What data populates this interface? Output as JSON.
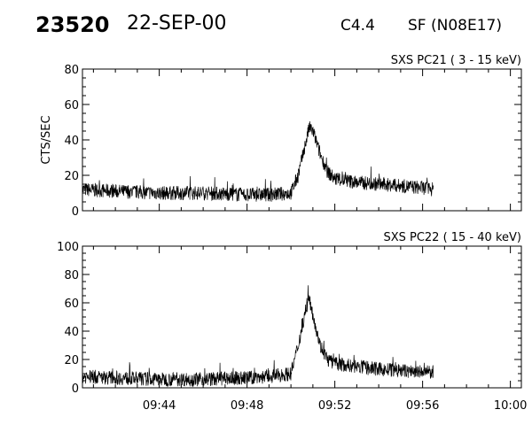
{
  "header": {
    "event_id": "23520",
    "date": "22-SEP-00",
    "flare_class": "C4.4",
    "location": "SF (N08E17)"
  },
  "chart_data": [
    {
      "type": "line",
      "title": "SXS PC21  (  3 - 15 keV)",
      "ylabel": "CTS/SEC",
      "xlabel": "",
      "ylim": [
        0,
        80
      ],
      "yticks": [
        "0",
        "20",
        "40",
        "60",
        "80"
      ],
      "xlim": [
        "09:40:30",
        "10:00:30"
      ],
      "x_tick_labels": [
        "09:44",
        "09:48",
        "09:52",
        "09:56",
        "10:00"
      ],
      "series": [
        {
          "x": [
            "09:40:30",
            "09:42:00",
            "09:44:00",
            "09:46:00",
            "09:48:00",
            "09:49:00",
            "09:50:00",
            "09:50:20",
            "09:50:40",
            "09:50:50",
            "09:51:00",
            "09:51:20",
            "09:51:40",
            "09:52:00",
            "09:52:30",
            "09:53:00",
            "09:54:00",
            "09:55:00",
            "09:56:00",
            "09:56:30"
          ],
          "y": [
            12,
            11,
            10,
            10,
            9,
            9,
            10,
            20,
            38,
            47,
            45,
            32,
            22,
            18,
            17,
            16,
            15,
            14,
            13,
            12
          ]
        }
      ]
    },
    {
      "type": "line",
      "title": "SXS PC22  ( 15 - 40 keV)",
      "ylabel": "",
      "xlabel": "",
      "ylim": [
        0,
        100
      ],
      "yticks": [
        "0",
        "20",
        "40",
        "60",
        "80",
        "100"
      ],
      "xlim": [
        "09:40:30",
        "10:00:30"
      ],
      "x_tick_labels": [
        "09:44",
        "09:48",
        "09:52",
        "09:56",
        "10:00"
      ],
      "series": [
        {
          "x": [
            "09:40:30",
            "09:42:00",
            "09:44:00",
            "09:46:00",
            "09:48:00",
            "09:49:00",
            "09:50:00",
            "09:50:20",
            "09:50:40",
            "09:50:50",
            "09:51:00",
            "09:51:20",
            "09:51:40",
            "09:52:00",
            "09:52:30",
            "09:53:00",
            "09:54:00",
            "09:55:00",
            "09:56:00",
            "09:56:30"
          ],
          "y": [
            8,
            7,
            6,
            6,
            7,
            8,
            10,
            30,
            55,
            62,
            52,
            30,
            20,
            17,
            16,
            15,
            13,
            12,
            11,
            11
          ]
        }
      ]
    }
  ]
}
